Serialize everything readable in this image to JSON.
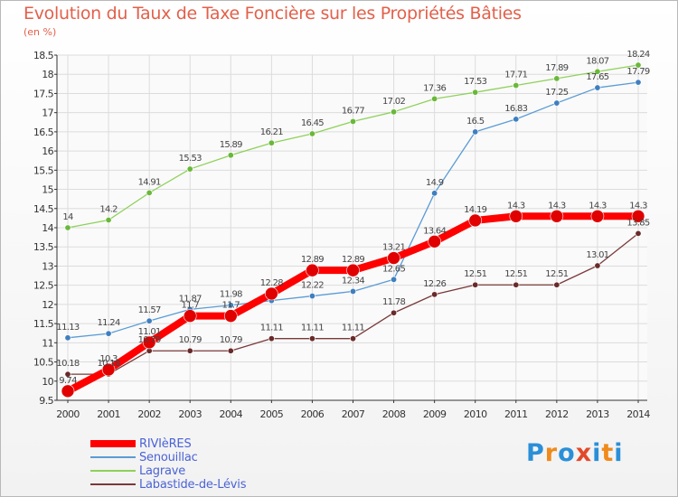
{
  "title": "Evolution du Taux de Taxe Foncière sur les Propriétés Bâties",
  "unit_label": "(en %)",
  "logo": {
    "text": "Proxiti",
    "letters": [
      "P",
      "r",
      "o",
      "x",
      "i",
      "t",
      "i"
    ],
    "colors": [
      "#2a8fd8",
      "#f08a1c",
      "#2a8fd8",
      "#e24a2a",
      "#2a8fd8",
      "#f08a1c",
      "#2a8fd8"
    ]
  },
  "chart_data": {
    "type": "line",
    "x": [
      "2000",
      "2001",
      "2002",
      "2003",
      "2004",
      "2005",
      "2006",
      "2007",
      "2008",
      "2009",
      "2010",
      "2011",
      "2012",
      "2013",
      "2014"
    ],
    "ylim": [
      9.5,
      18.5
    ],
    "yticks": [
      "9.5",
      "10",
      "10.5",
      "11",
      "11.5",
      "12",
      "12.5",
      "13",
      "13.5",
      "14",
      "14.5",
      "15",
      "15.5",
      "16",
      "16.5",
      "17",
      "17.5",
      "18",
      "18.5"
    ],
    "grid": true,
    "legend_position": "bottom-left",
    "series": [
      {
        "name": "Labastide-de-Lévis",
        "color": "#7a3a3a",
        "marker": "#6a2a2a",
        "width": 1.3,
        "dot": 3.2,
        "values": [
          10.18,
          10.18,
          10.79,
          10.79,
          10.79,
          11.11,
          11.11,
          11.11,
          11.78,
          12.26,
          12.51,
          12.51,
          12.51,
          13.01,
          13.85
        ],
        "labels": [
          "10.18",
          "10.18",
          "10.79",
          "10.79",
          "10.79",
          "11.11",
          "11.11",
          "11.11",
          "11.78",
          "12.26",
          "12.51",
          "12.51",
          "12.51",
          "13.01",
          "13.85"
        ],
        "label_show": [
          true,
          true,
          true,
          true,
          true,
          true,
          true,
          true,
          true,
          true,
          true,
          true,
          true,
          true,
          true
        ]
      },
      {
        "name": "Senouillac",
        "color": "#5b9bd5",
        "marker": "#3f7fc0",
        "width": 1.3,
        "dot": 3.2,
        "values": [
          11.13,
          11.24,
          11.57,
          11.87,
          11.98,
          12.1,
          12.22,
          12.34,
          12.65,
          14.9,
          16.5,
          16.83,
          17.25,
          17.65,
          17.79
        ],
        "labels": [
          "11.13",
          "11.24",
          "11.57",
          "11.87",
          "11.98",
          "",
          "12.22",
          "12.34",
          "12.65",
          "14.9",
          "16.5",
          "16.83",
          "17.25",
          "17.65",
          "17.79"
        ],
        "label_show": [
          true,
          true,
          true,
          true,
          true,
          false,
          true,
          true,
          true,
          true,
          true,
          true,
          true,
          true,
          true
        ]
      },
      {
        "name": "Lagrave",
        "color": "#8ed15a",
        "marker": "#6ab83a",
        "width": 1.3,
        "dot": 3.2,
        "values": [
          14.0,
          14.2,
          14.91,
          15.53,
          15.89,
          16.21,
          16.45,
          16.77,
          17.02,
          17.36,
          17.53,
          17.71,
          17.89,
          18.07,
          18.24
        ],
        "labels": [
          "14",
          "14.2",
          "14.91",
          "15.53",
          "15.89",
          "16.21",
          "16.45",
          "16.77",
          "17.02",
          "17.36",
          "17.53",
          "17.71",
          "17.89",
          "18.07",
          "18.24"
        ],
        "label_show": [
          true,
          true,
          true,
          true,
          true,
          true,
          true,
          true,
          true,
          true,
          true,
          true,
          true,
          true,
          true
        ]
      },
      {
        "name": "RIVIèRES",
        "color": "#ff0000",
        "marker": "#e00000",
        "width": 8,
        "dot": 7,
        "values": [
          9.74,
          10.3,
          11.01,
          11.7,
          11.7,
          12.28,
          12.89,
          12.89,
          13.21,
          13.64,
          14.19,
          14.3,
          14.3,
          14.3,
          14.3
        ],
        "labels": [
          "9.74",
          "10.3",
          "11.01",
          "11.7",
          "11.7",
          "12.28",
          "12.89",
          "12.89",
          "13.21",
          "13.64",
          "14.19",
          "14.3",
          "14.3",
          "14.3",
          "14.3"
        ],
        "label_show": [
          true,
          true,
          true,
          true,
          true,
          true,
          true,
          true,
          true,
          true,
          true,
          true,
          true,
          true,
          true
        ]
      }
    ],
    "legend": [
      {
        "name": "RIVIèRES",
        "color": "#ff0000",
        "width": 8
      },
      {
        "name": "Senouillac",
        "color": "#5b9bd5",
        "width": 2
      },
      {
        "name": "Lagrave",
        "color": "#8ed15a",
        "width": 2
      },
      {
        "name": "Labastide-de-Lévis",
        "color": "#7a3a3a",
        "width": 2
      }
    ]
  }
}
